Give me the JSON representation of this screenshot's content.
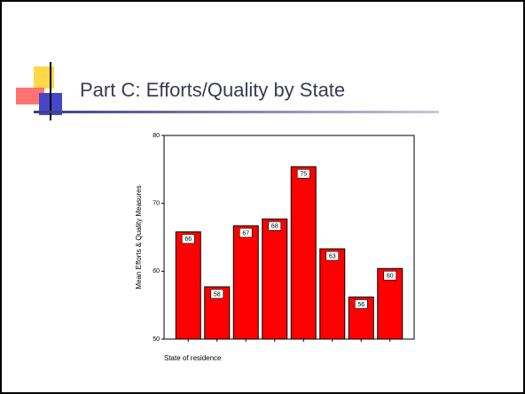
{
  "slide_title": "Part C: Efforts/Quality by State",
  "chart_data": {
    "type": "bar",
    "categories": [
      null,
      null,
      null,
      null,
      null,
      null,
      null,
      null
    ],
    "values": [
      65.8,
      57.7,
      66.7,
      67.7,
      75.4,
      63.3,
      56.2,
      60.4
    ],
    "value_labels": [
      "66",
      "58",
      "67",
      "68",
      "75",
      "63",
      "56",
      "60"
    ],
    "color": "#ff0000",
    "x_label": "State of residence",
    "y_label": "Mean Efforts & Quality Measures",
    "ylim": [
      50,
      80
    ],
    "yticks": [
      50,
      60,
      70,
      80
    ],
    "grid": false
  }
}
